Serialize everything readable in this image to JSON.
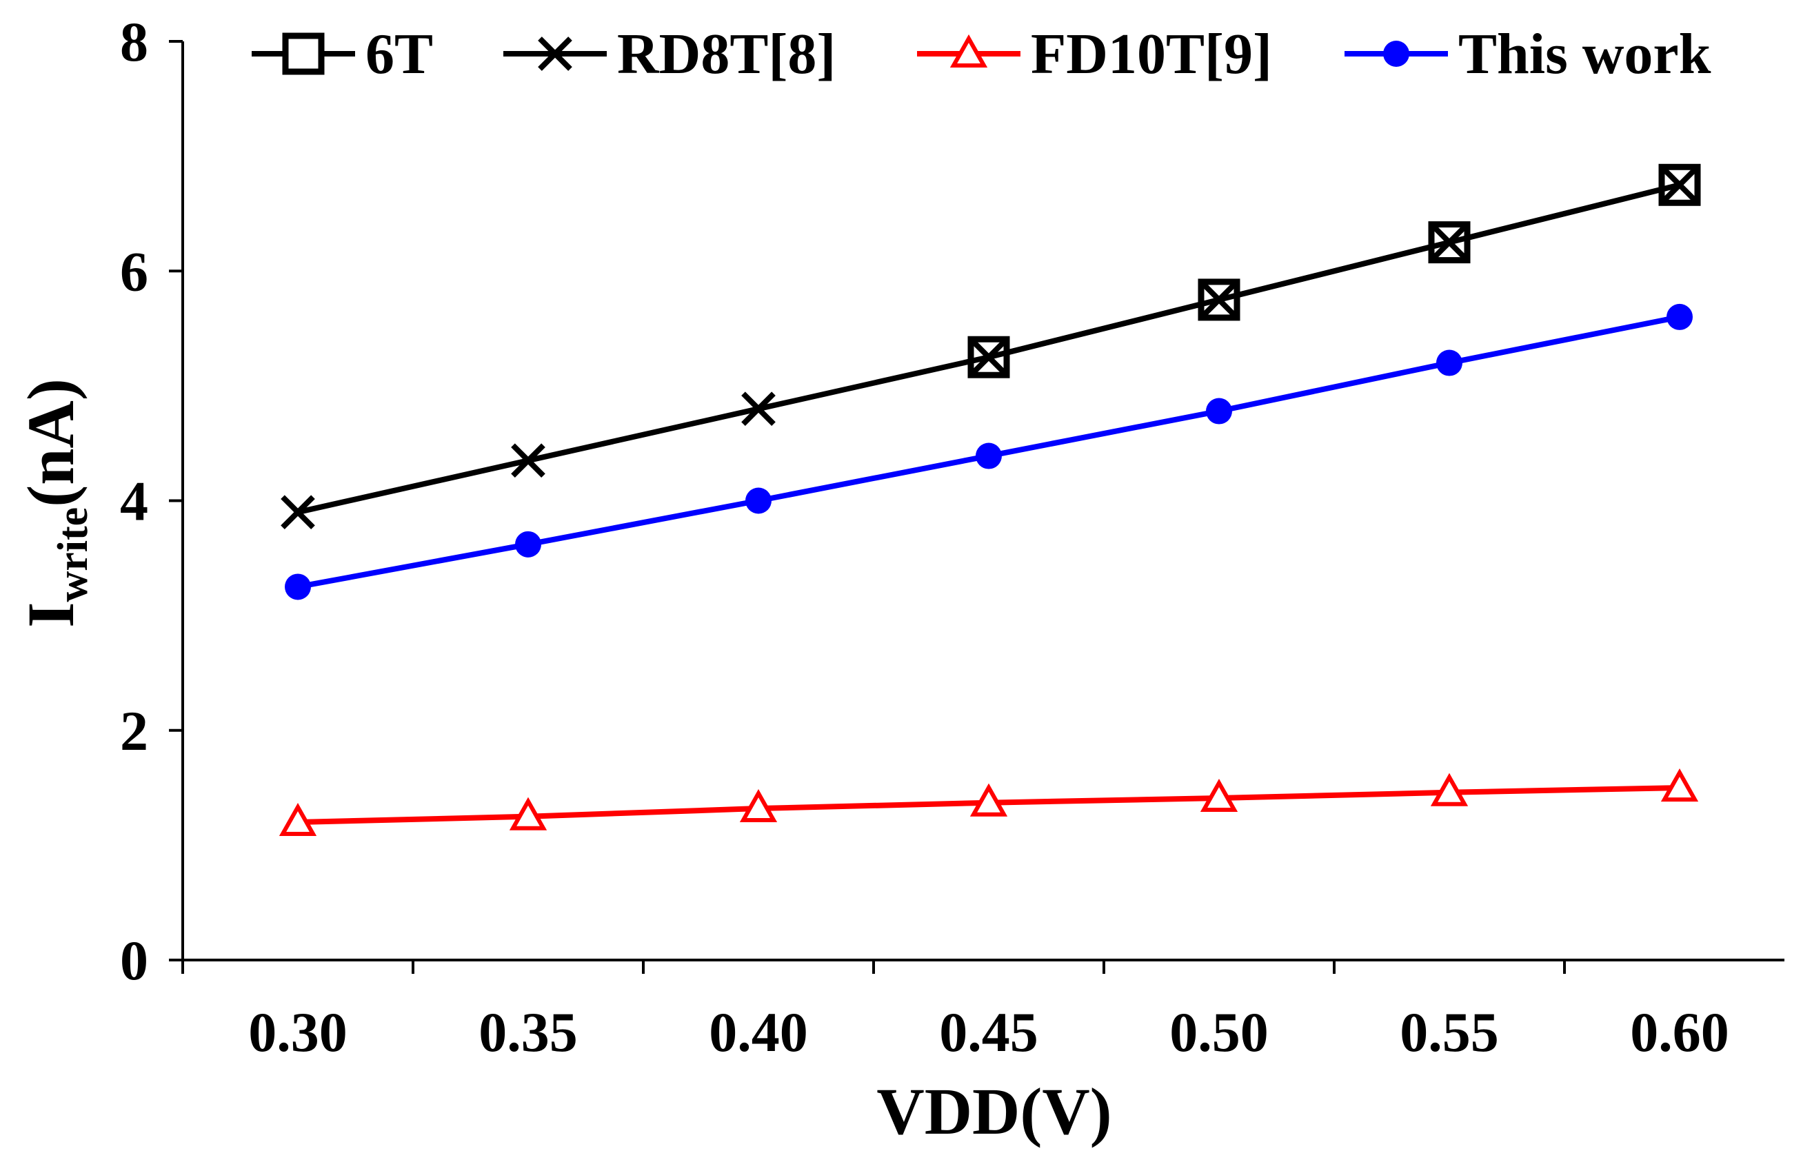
{
  "chart_data": {
    "type": "line",
    "title": "",
    "xlabel": "VDD(V)",
    "ylabel": {
      "main": "I",
      "subscript": "write",
      "suffix": "(nA)"
    },
    "categories": [
      "0.30",
      "0.35",
      "0.40",
      "0.45",
      "0.50",
      "0.55",
      "0.60"
    ],
    "y_ticks": [
      "0",
      "2",
      "4",
      "6",
      "8"
    ],
    "ylim": [
      0,
      8
    ],
    "grid": false,
    "legend_position": "top",
    "series": [
      {
        "name": "6T",
        "color": "#000000",
        "marker": "square",
        "points": [
          [
            3,
            5.25
          ],
          [
            4,
            5.75
          ],
          [
            5,
            6.25
          ],
          [
            6,
            6.75
          ]
        ]
      },
      {
        "name": "RD8T[8]",
        "color": "#000000",
        "marker": "x",
        "points": [
          [
            0,
            3.9
          ],
          [
            1,
            4.35
          ],
          [
            2,
            4.8
          ],
          [
            3,
            5.25
          ],
          [
            4,
            5.75
          ],
          [
            5,
            6.25
          ],
          [
            6,
            6.75
          ]
        ]
      },
      {
        "name": "FD10T[9]",
        "color": "#ff0000",
        "marker": "triangle",
        "points": [
          [
            0,
            1.2
          ],
          [
            1,
            1.25
          ],
          [
            2,
            1.32
          ],
          [
            3,
            1.37
          ],
          [
            4,
            1.41
          ],
          [
            5,
            1.46
          ],
          [
            6,
            1.5
          ]
        ]
      },
      {
        "name": "This work",
        "color": "#0000ff",
        "marker": "circle",
        "points": [
          [
            0,
            3.25
          ],
          [
            1,
            3.62
          ],
          [
            2,
            4.0
          ],
          [
            3,
            4.39
          ],
          [
            4,
            4.78
          ],
          [
            5,
            5.2
          ],
          [
            6,
            5.6
          ]
        ]
      }
    ]
  }
}
